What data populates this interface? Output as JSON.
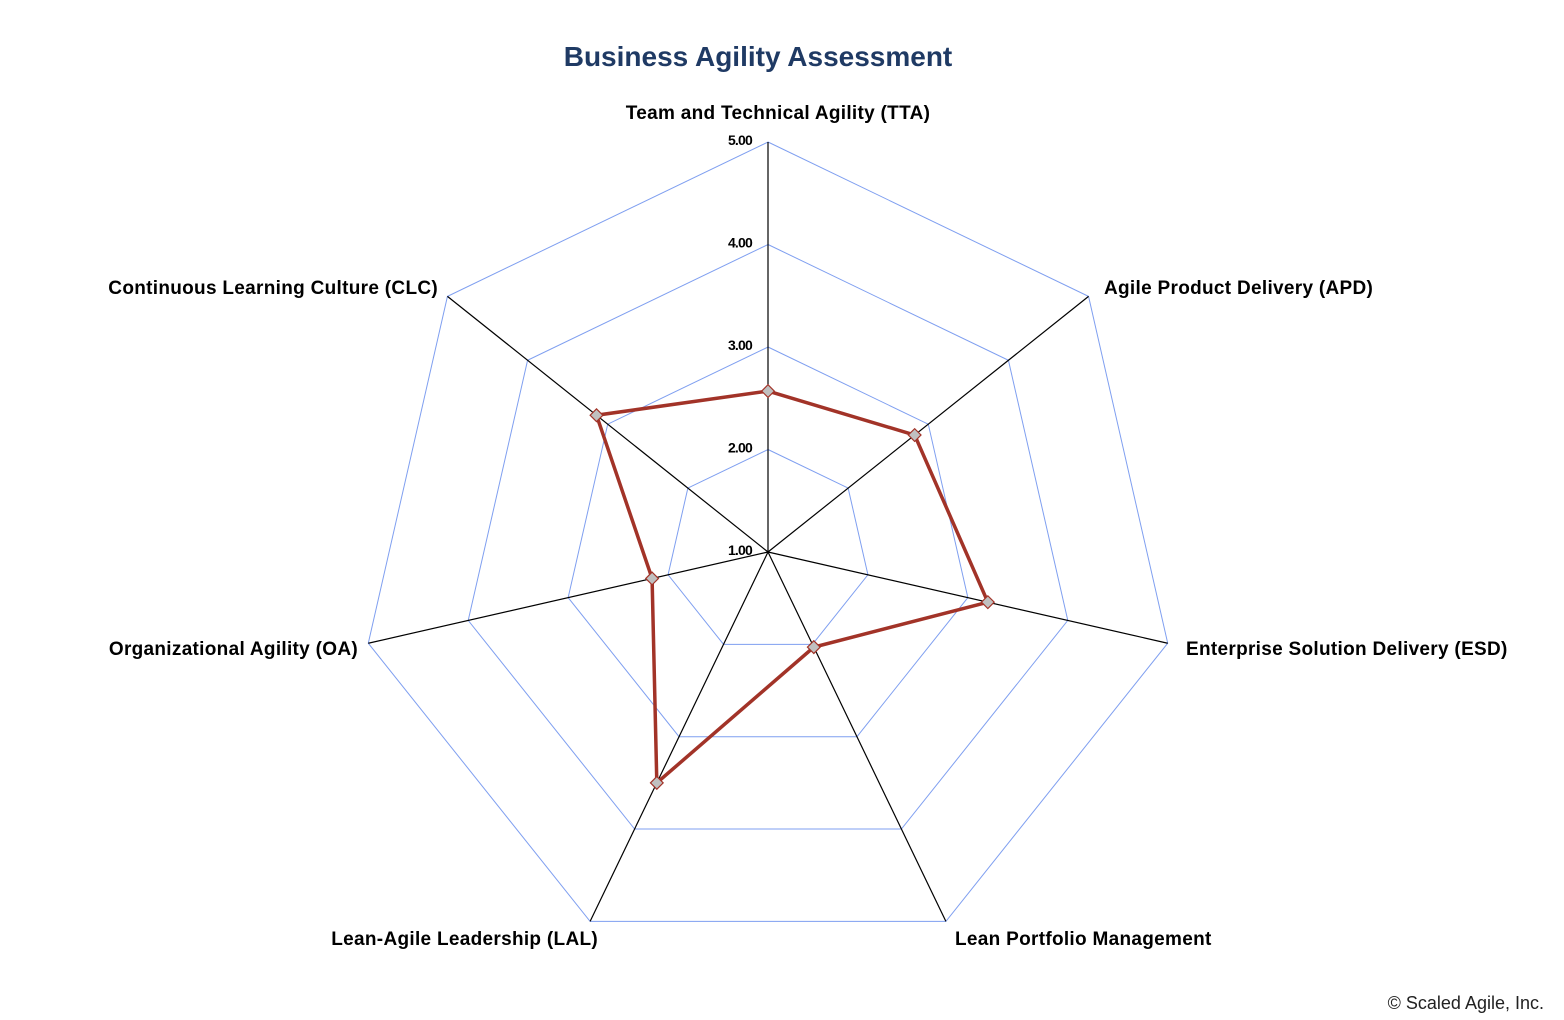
{
  "chart_data": {
    "type": "radar",
    "title": "Business Agility Assessment",
    "categories": [
      "Team and Technical Agility (TTA)",
      "Agile Product Delivery (APD)",
      "Enterprise Solution Delivery (ESD)",
      "Lean Portfolio Management",
      "Lean-Agile Leadership (LAL)",
      "Organizational Agility (OA)",
      "Continuous Learning Culture (CLC)"
    ],
    "values": [
      2.57,
      2.83,
      3.2,
      2.03,
      3.5,
      2.16,
      3.14
    ],
    "rlim": [
      1,
      5
    ],
    "ticks": [
      "1.00",
      "2.00",
      "3.00",
      "4.00",
      "5.00"
    ],
    "grid": true,
    "legend": "none",
    "colors": {
      "series": "#a23328",
      "marker": "#c0c0c0",
      "grid": "#7f9ff0",
      "axis": "#000000",
      "title": "#1f3a64"
    }
  },
  "footer": {
    "copyright": "© Scaled Agile, Inc."
  }
}
